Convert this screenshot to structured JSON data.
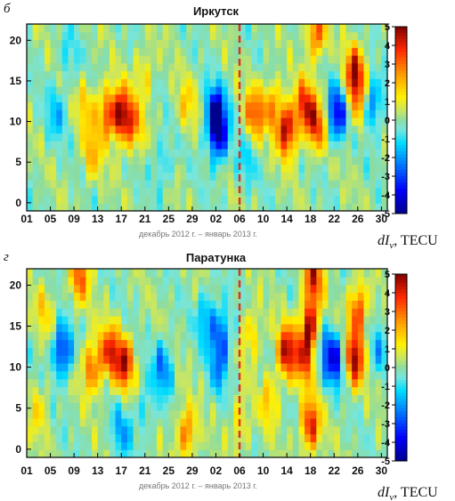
{
  "chart_data": [
    {
      "type": "heatmap",
      "panel_letter": "б",
      "title": "Иркутск",
      "x_tick_labels": [
        "01",
        "05",
        "09",
        "13",
        "17",
        "21",
        "25",
        "29",
        "02",
        "06",
        "10",
        "14",
        "18",
        "22",
        "26",
        "30"
      ],
      "y_ticks": [
        0,
        5,
        10,
        15,
        20
      ],
      "ylim": [
        -1,
        22
      ],
      "xlim_days": [
        0,
        61
      ],
      "faint_xlabel": "декабрь 2012 г. – январь 2013 г.",
      "divider_day": 36,
      "colorbar": {
        "min": -5,
        "max": 5,
        "ticks": [
          5,
          4,
          3,
          2,
          1,
          0,
          -1,
          -2,
          -3,
          -4,
          -5
        ]
      },
      "blobs": [
        {
          "day": 16,
          "hour": 11,
          "value": 4.6
        },
        {
          "day": 13.5,
          "hour": 11,
          "value": 3.2
        },
        {
          "day": 18,
          "hour": 9.5,
          "value": 2.6
        },
        {
          "day": 32,
          "hour": 11,
          "value": -4.8
        },
        {
          "day": 32.5,
          "hour": 8,
          "value": -3.4
        },
        {
          "day": 38.5,
          "hour": 11,
          "value": 3.2
        },
        {
          "day": 41.5,
          "hour": 12,
          "value": 2.4
        },
        {
          "day": 44,
          "hour": 9,
          "value": 4.8
        },
        {
          "day": 47,
          "hour": 12,
          "value": 3.8
        },
        {
          "day": 49,
          "hour": 9.5,
          "value": 3.5
        },
        {
          "day": 52.5,
          "hour": 11,
          "value": -4.0
        },
        {
          "day": 55.5,
          "hour": 16,
          "value": 4.6
        },
        {
          "day": 56,
          "hour": 12,
          "value": 2.0
        },
        {
          "day": 58.5,
          "hour": 12,
          "value": -2.6
        },
        {
          "day": 11,
          "hour": 6,
          "value": 2.0
        },
        {
          "day": 5,
          "hour": 11,
          "value": -1.5
        },
        {
          "day": 10,
          "hour": 12,
          "value": 1.6
        },
        {
          "day": 27,
          "hour": 12,
          "value": 1.6
        },
        {
          "day": 23,
          "hour": 5,
          "value": -1.3
        },
        {
          "day": 49,
          "hour": 21,
          "value": 3.4
        },
        {
          "day": 37,
          "hour": 5,
          "value": -1.2
        },
        {
          "day": 20,
          "hour": 16,
          "value": 1.5
        },
        {
          "day": 7,
          "hour": 18,
          "value": -1.0
        }
      ]
    },
    {
      "type": "heatmap",
      "panel_letter": "г",
      "title": "Паратунка",
      "x_tick_labels": [
        "01",
        "05",
        "09",
        "13",
        "17",
        "21",
        "25",
        "29",
        "02",
        "06",
        "10",
        "14",
        "18",
        "22",
        "26",
        "30"
      ],
      "y_ticks": [
        0,
        5,
        10,
        15,
        20
      ],
      "ylim": [
        -1,
        22
      ],
      "xlim_days": [
        0,
        61
      ],
      "faint_xlabel": "декабрь 2012 г. – январь 2013 г.",
      "divider_day": 36,
      "colorbar": {
        "min": -5,
        "max": 5,
        "ticks": [
          5,
          4,
          3,
          2,
          1,
          0,
          -1,
          -2,
          -3,
          -4,
          -5
        ]
      },
      "blobs": [
        {
          "day": 6,
          "hour": 12,
          "value": -3.6
        },
        {
          "day": 11,
          "hour": 10,
          "value": 3.2
        },
        {
          "day": 14,
          "hour": 12,
          "value": 3.6
        },
        {
          "day": 16.5,
          "hour": 10.5,
          "value": 4.2
        },
        {
          "day": 9,
          "hour": 21,
          "value": 3.0
        },
        {
          "day": 16,
          "hour": 2,
          "value": -1.8
        },
        {
          "day": 23,
          "hour": 10,
          "value": -2.4
        },
        {
          "day": 27,
          "hour": 2,
          "value": 3.0
        },
        {
          "day": 30.5,
          "hour": 16,
          "value": -2.0
        },
        {
          "day": 33,
          "hour": 14,
          "value": -2.6
        },
        {
          "day": 32.5,
          "hour": 10,
          "value": -1.8
        },
        {
          "day": 38,
          "hour": 14,
          "value": 1.8
        },
        {
          "day": 44,
          "hour": 12,
          "value": 4.6
        },
        {
          "day": 47,
          "hour": 11,
          "value": 3.2
        },
        {
          "day": 48,
          "hour": 15,
          "value": 4.8
        },
        {
          "day": 48,
          "hour": 3,
          "value": 4.2
        },
        {
          "day": 48.5,
          "hour": 21,
          "value": 4.0
        },
        {
          "day": 52,
          "hour": 11,
          "value": -3.8
        },
        {
          "day": 50,
          "hour": 13,
          "value": -1.6
        },
        {
          "day": 55.5,
          "hour": 11,
          "value": 4.6
        },
        {
          "day": 56,
          "hour": 17,
          "value": 3.6
        },
        {
          "day": 41,
          "hour": 6,
          "value": 1.8
        },
        {
          "day": 3,
          "hour": 17,
          "value": 1.5
        },
        {
          "day": 20,
          "hour": 5,
          "value": -1.2
        },
        {
          "day": 36,
          "hour": 3,
          "value": 1.5
        },
        {
          "day": 59.5,
          "hour": 12,
          "value": -1.4
        },
        {
          "day": 2,
          "hour": 5,
          "value": 1.4
        }
      ]
    }
  ],
  "colorbar_label": "dI",
  "colorbar_sub": "v",
  "colorbar_unit": ", TECU",
  "colors": {
    "divider": "#e03020",
    "frame": "#000000"
  }
}
